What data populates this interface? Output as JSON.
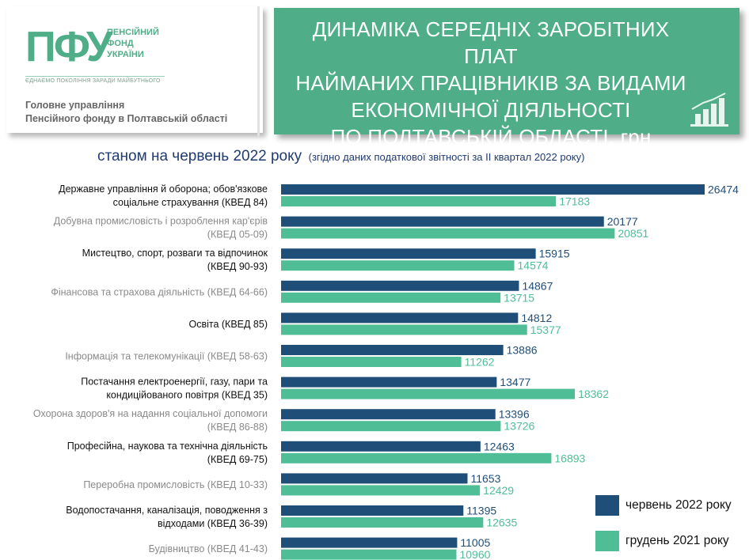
{
  "logo": {
    "mark": "ПФУ",
    "name_lines": [
      "ПЕНСІЙНИЙ",
      "ФОНД",
      "УКРАЇНИ"
    ],
    "slogan": "ЄДНАЄМО ПОКОЛІННЯ ЗАРАДИ МАЙБУТНЬОГО"
  },
  "org": {
    "lines": [
      "Головне управління",
      "Пенсійного фонду в Полтавській області"
    ]
  },
  "header": {
    "title_lines": [
      "ДИНАМІКА СЕРЕДНІХ ЗАРОБІТНИХ ПЛАТ",
      "НАЙМАНИХ ПРАЦІВНИКІВ ЗА ВИДАМИ",
      "ЕКОНОМІЧНОЇ ДІЯЛЬНОСТІ",
      "ПО ПОЛТАВСЬКІЙ ОБЛАСТІ, грн"
    ],
    "icon": "growth-chart-icon"
  },
  "subtitle": {
    "main": "станом на червень 2022 року",
    "note": "(згідно даних податкової звітності за ІІ  квартал 2022 року)"
  },
  "colors": {
    "june_2022": "#1f4e79",
    "dec_2021": "#4fbe96",
    "header_bg": "#4fae88",
    "label_dark": "#111111",
    "label_grey": "#8a8a8a"
  },
  "chart_data": {
    "type": "bar",
    "orientation": "horizontal",
    "series": [
      {
        "name": "червень 2022 року",
        "color": "#1f4e79",
        "values": [
          26474,
          20177,
          15915,
          14867,
          14812,
          13886,
          13477,
          13396,
          12463,
          11653,
          11395,
          11005
        ]
      },
      {
        "name": "грудень 2021 року",
        "color": "#4fbe96",
        "values": [
          17183,
          20851,
          14574,
          13715,
          15377,
          11262,
          18362,
          13726,
          16893,
          12429,
          12635,
          10960
        ]
      }
    ],
    "categories": [
      {
        "lines": [
          "Державне управління й оборона; обов'язкове",
          "соціальне страхування (КВЕД 84)"
        ],
        "style": "dark"
      },
      {
        "lines": [
          "Добувна промисловість і розроблення кар'єрів",
          "(КВЕД 05-09)"
        ],
        "style": "grey"
      },
      {
        "lines": [
          "Мистецтво, спорт, розваги та відпочинок",
          "(КВЕД 90-93)"
        ],
        "style": "dark"
      },
      {
        "lines": [
          "Фінансова та страхова діяльність (КВЕД 64-66)"
        ],
        "style": "grey"
      },
      {
        "lines": [
          "Освіта (КВЕД 85)"
        ],
        "style": "dark"
      },
      {
        "lines": [
          "Інформація та телекомунікації (КВЕД 58-63)"
        ],
        "style": "grey"
      },
      {
        "lines": [
          "Постачання електроенергії, газу, пари та",
          "кондиційованого повітря (КВЕД 35)"
        ],
        "style": "dark"
      },
      {
        "lines": [
          "Охорона здоров'я на надання соціальної допомоги",
          "(КВЕД 86-88)"
        ],
        "style": "grey"
      },
      {
        "lines": [
          "Професійна, наукова та технічна діяльність",
          "(КВЕД 69-75)"
        ],
        "style": "dark"
      },
      {
        "lines": [
          "Переробна промисловість (КВЕД 10-33)"
        ],
        "style": "grey"
      },
      {
        "lines": [
          "Водопостачання, каналізація, поводження з",
          "відходами (КВЕД 36-39)"
        ],
        "style": "dark"
      },
      {
        "lines": [
          "Будівництво (КВЕД 41-43)"
        ],
        "style": "grey"
      }
    ],
    "xlim": [
      0,
      26474
    ],
    "legend_position": "bottom-right",
    "grid": false
  }
}
